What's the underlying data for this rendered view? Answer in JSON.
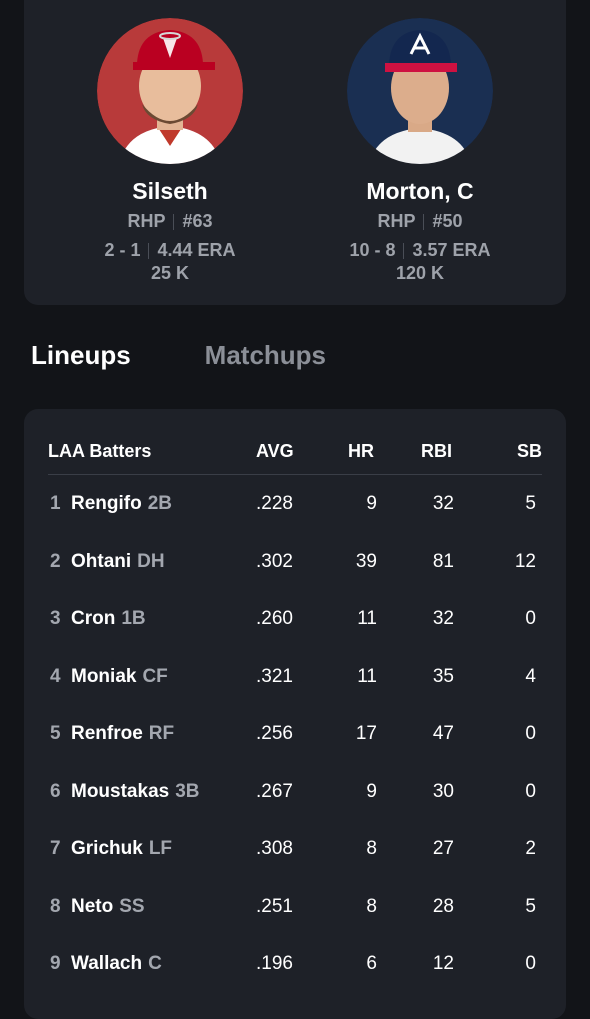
{
  "pitchers": {
    "home": {
      "name": "Silseth",
      "hand": "RHP",
      "number": "#63",
      "record": "2 - 1",
      "era": "4.44 ERA",
      "strikeouts": "25 K",
      "bg_color": "#b83a3a",
      "cap_color": "#ba0021"
    },
    "away": {
      "name": "Morton, C",
      "hand": "RHP",
      "number": "#50",
      "record": "10 - 8",
      "era": "3.57 ERA",
      "strikeouts": "120 K",
      "bg_color": "#1a2f52",
      "cap_color": "#13274f"
    }
  },
  "tabs": [
    {
      "label": "Lineups",
      "active": true
    },
    {
      "label": "Matchups",
      "active": false
    }
  ],
  "lineup": {
    "headers": {
      "team": "LAA Batters",
      "avg": "AVG",
      "hr": "HR",
      "rbi": "RBI",
      "sb": "SB"
    },
    "rows": [
      {
        "order": "1",
        "name": "Rengifo",
        "pos": "2B",
        "avg": ".228",
        "hr": "9",
        "rbi": "32",
        "sb": "5"
      },
      {
        "order": "2",
        "name": "Ohtani",
        "pos": "DH",
        "avg": ".302",
        "hr": "39",
        "rbi": "81",
        "sb": "12"
      },
      {
        "order": "3",
        "name": "Cron",
        "pos": "1B",
        "avg": ".260",
        "hr": "11",
        "rbi": "32",
        "sb": "0"
      },
      {
        "order": "4",
        "name": "Moniak",
        "pos": "CF",
        "avg": ".321",
        "hr": "11",
        "rbi": "35",
        "sb": "4"
      },
      {
        "order": "5",
        "name": "Renfroe",
        "pos": "RF",
        "avg": ".256",
        "hr": "17",
        "rbi": "47",
        "sb": "0"
      },
      {
        "order": "6",
        "name": "Moustakas",
        "pos": "3B",
        "avg": ".267",
        "hr": "9",
        "rbi": "30",
        "sb": "0"
      },
      {
        "order": "7",
        "name": "Grichuk",
        "pos": "LF",
        "avg": ".308",
        "hr": "8",
        "rbi": "27",
        "sb": "2"
      },
      {
        "order": "8",
        "name": "Neto",
        "pos": "SS",
        "avg": ".251",
        "hr": "8",
        "rbi": "28",
        "sb": "5"
      },
      {
        "order": "9",
        "name": "Wallach",
        "pos": "C",
        "avg": ".196",
        "hr": "6",
        "rbi": "12",
        "sb": "0"
      }
    ]
  }
}
